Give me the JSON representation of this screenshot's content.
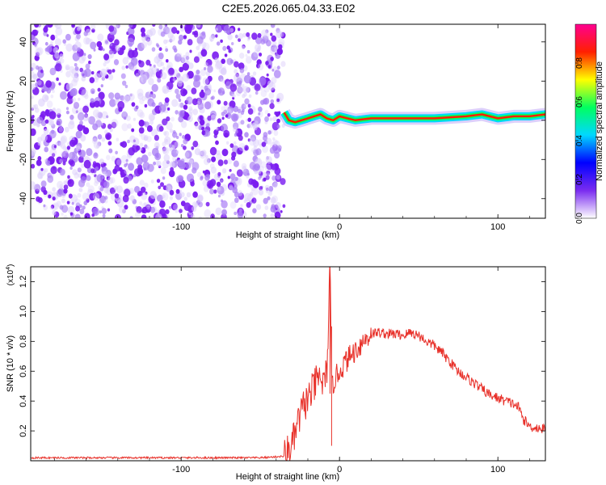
{
  "title": "C2E5.2026.065.04.33.E02",
  "colors": {
    "snr_line": "#e8312a",
    "scatter": "#7a2cf0",
    "axis": "#000000"
  },
  "chart_data": [
    {
      "type": "heatmap",
      "xlabel": "Height of straight line (km)",
      "ylabel": "Frequency (Hz)",
      "xlim": [
        -195,
        130
      ],
      "ylim": [
        -50,
        49
      ],
      "xticks": [
        -100,
        0,
        100
      ],
      "xtick_labels": [
        "-100",
        "0",
        "100"
      ],
      "yticks": [
        -40,
        -20,
        0,
        20,
        40
      ],
      "ytick_labels": [
        "-40",
        "-20",
        "0",
        "20",
        "40"
      ],
      "colorbar": {
        "label": "Normalized spectral amplitude",
        "range": [
          0,
          1
        ],
        "ticks": [
          0.0,
          0.2,
          0.4,
          0.6,
          0.8
        ],
        "tick_labels": [
          "0.0",
          "0.2",
          "0.4",
          "0.6",
          "0.8"
        ],
        "colormap": [
          "#ffffff",
          "#7a2cf0",
          "#0000ff",
          "#00d8ff",
          "#00ff60",
          "#ffff00",
          "#ff2000",
          "#ff0090"
        ]
      },
      "noise_region_x": [
        -195,
        -35
      ],
      "ridge": {
        "x": [
          -35,
          -32,
          -28,
          -24,
          -20,
          -16,
          -12,
          -8,
          -4,
          0,
          5,
          10,
          20,
          40,
          60,
          80,
          90,
          100,
          110,
          120,
          130
        ],
        "y": [
          4,
          0,
          -1,
          0,
          1,
          2,
          3,
          1,
          0,
          2,
          1,
          0,
          1,
          1,
          1,
          2,
          3,
          1,
          2,
          2,
          3
        ],
        "note": ""
      }
    },
    {
      "type": "line",
      "xlabel": "Height of straight line (km)",
      "ylabel": "SNR (10 * v/v)",
      "y_multiplier_label": "(x10",
      "y_multiplier_exp": "4",
      "xlim": [
        -195,
        130
      ],
      "ylim": [
        0,
        1.3
      ],
      "xticks": [
        -100,
        0,
        100
      ],
      "xtick_labels": [
        "-100",
        "0",
        "100"
      ],
      "yticks": [
        0.2,
        0.4,
        0.6,
        0.8,
        1.0,
        1.2
      ],
      "ytick_labels": [
        "0.2",
        "0.4",
        "0.6",
        "0.8",
        "1.0",
        "1.2"
      ],
      "series": [
        {
          "x": [
            -195,
            -150,
            -100,
            -50,
            -35,
            -30,
            -25,
            -22,
            -18,
            -15,
            -12,
            -10,
            -8,
            -6,
            -5,
            -3,
            0,
            5,
            10,
            15,
            20,
            25,
            30,
            35,
            40,
            45,
            50,
            55,
            60,
            65,
            70,
            75,
            80,
            85,
            90,
            95,
            100,
            105,
            110,
            113,
            116,
            120,
            125,
            130
          ],
          "y": [
            0.02,
            0.02,
            0.02,
            0.02,
            0.03,
            0.1,
            0.3,
            0.38,
            0.45,
            0.52,
            0.56,
            0.5,
            0.6,
            1.27,
            0.48,
            0.55,
            0.6,
            0.68,
            0.74,
            0.8,
            0.85,
            0.86,
            0.85,
            0.85,
            0.84,
            0.86,
            0.84,
            0.8,
            0.77,
            0.72,
            0.66,
            0.6,
            0.56,
            0.52,
            0.48,
            0.44,
            0.42,
            0.4,
            0.38,
            0.36,
            0.28,
            0.23,
            0.22,
            0.21
          ]
        }
      ]
    }
  ]
}
